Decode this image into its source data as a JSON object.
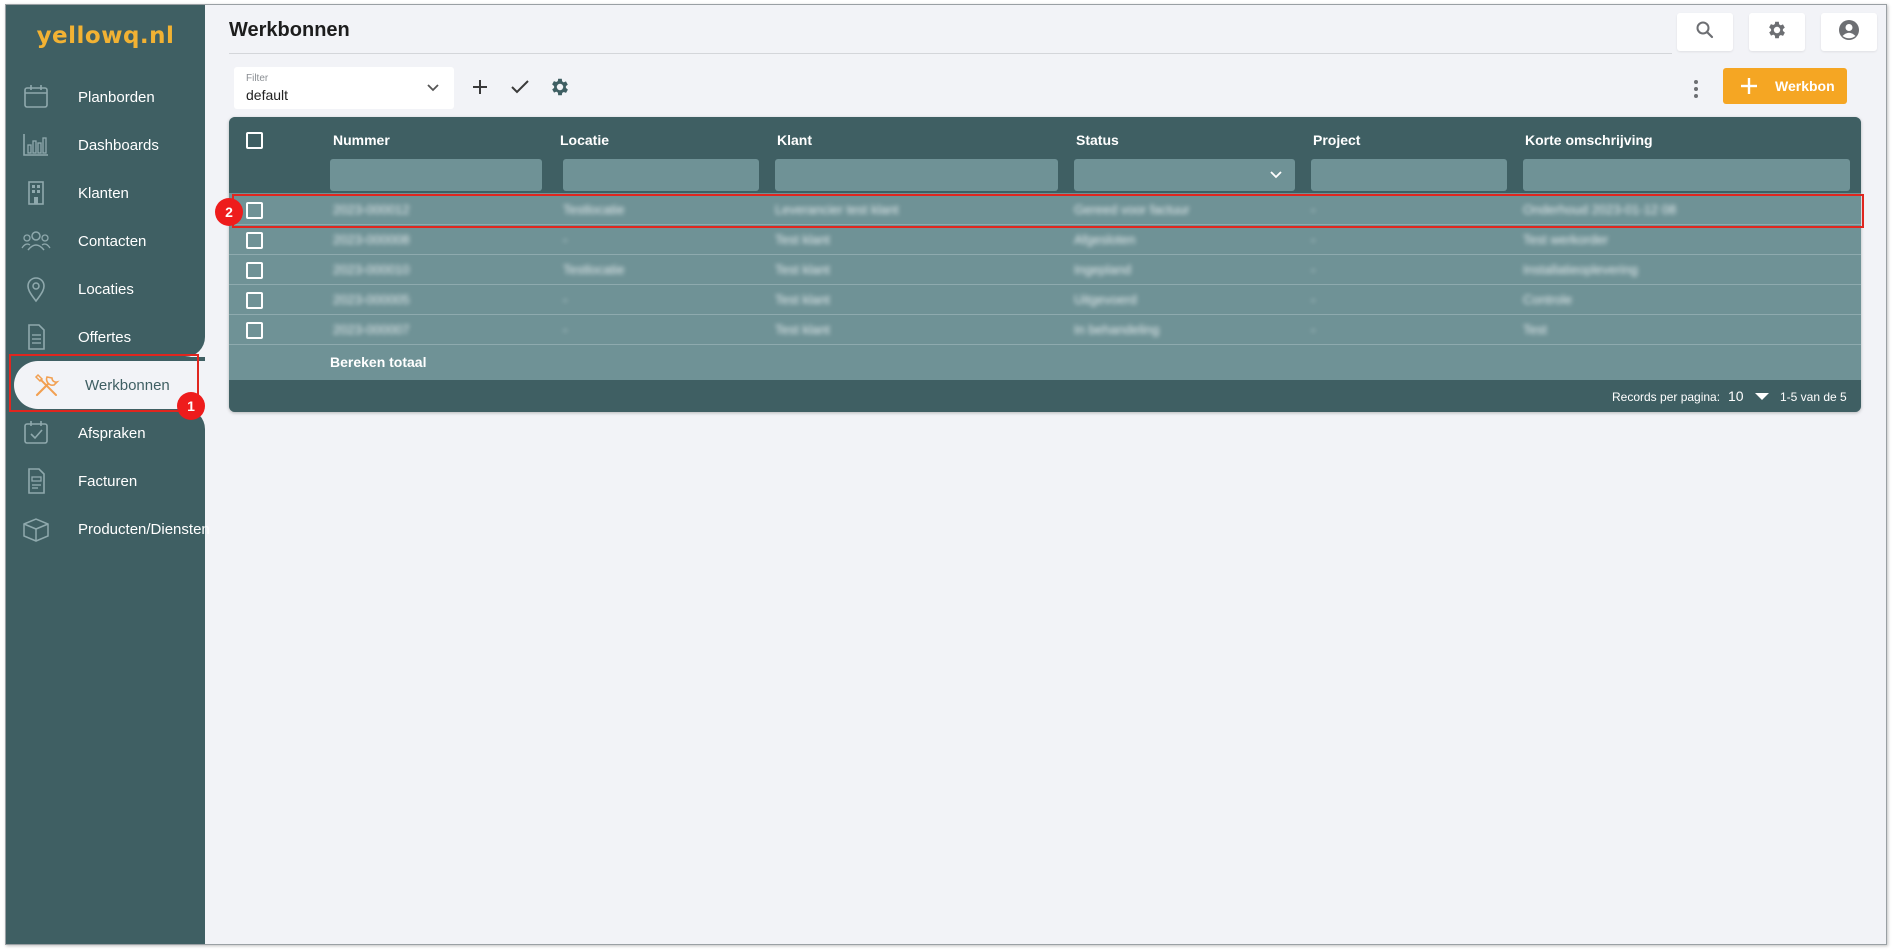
{
  "app": {
    "logo": "yellowq.nl"
  },
  "sidebar": {
    "items": [
      {
        "label": "Planborden",
        "icon": "calendar-icon"
      },
      {
        "label": "Dashboards",
        "icon": "bar-chart-icon"
      },
      {
        "label": "Klanten",
        "icon": "building-icon"
      },
      {
        "label": "Contacten",
        "icon": "people-icon"
      },
      {
        "label": "Locaties",
        "icon": "location-pin-icon"
      },
      {
        "label": "Offertes",
        "icon": "document-icon"
      },
      {
        "label": "Werkbonnen",
        "icon": "tools-icon",
        "active": true
      },
      {
        "label": "Afspraken",
        "icon": "calendar-check-icon"
      },
      {
        "label": "Facturen",
        "icon": "invoice-icon"
      },
      {
        "label": "Producten/Diensten",
        "icon": "box-icon"
      }
    ]
  },
  "header": {
    "title": "Werkbonnen",
    "icons": [
      "search-icon",
      "gear-icon",
      "account-icon"
    ]
  },
  "toolbar": {
    "filter_label": "Filter",
    "filter_value": "default",
    "add_button_label": "Werkbon"
  },
  "table": {
    "columns": [
      "Nummer",
      "Locatie",
      "Klant",
      "Status",
      "Project",
      "Korte omschrijving"
    ],
    "rows": [
      [
        "2023-000012",
        "Testlocatie",
        "Leverancier test klant",
        "Gereed voor factuur",
        "-",
        "Onderhoud 2023-01-12 08"
      ],
      [
        "2023-000008",
        "-",
        "Test klant",
        "Afgesloten",
        "-",
        "Test werkorder"
      ],
      [
        "2023-000010",
        "Testlocatie",
        "Test klant",
        "Ingepland",
        "-",
        "Installatieoplevering"
      ],
      [
        "2023-000005",
        "-",
        "Test klant",
        "Uitgevoerd",
        "-",
        "Controle"
      ],
      [
        "2023-000007",
        "-",
        "Test klant",
        "In behandeling",
        "-",
        "Test"
      ]
    ],
    "total_label": "Bereken totaal",
    "footer": {
      "records_per_page_label": "Records per pagina:",
      "records_per_page_value": "10",
      "range_label": "1-5 van de 5"
    }
  },
  "annotations": [
    "1",
    "2"
  ],
  "colors": {
    "sidebar": "#3f5f63",
    "table_body": "#6f9296",
    "accent": "#f5a623",
    "logo": "#f2b233",
    "annotation": "#e0261f"
  }
}
